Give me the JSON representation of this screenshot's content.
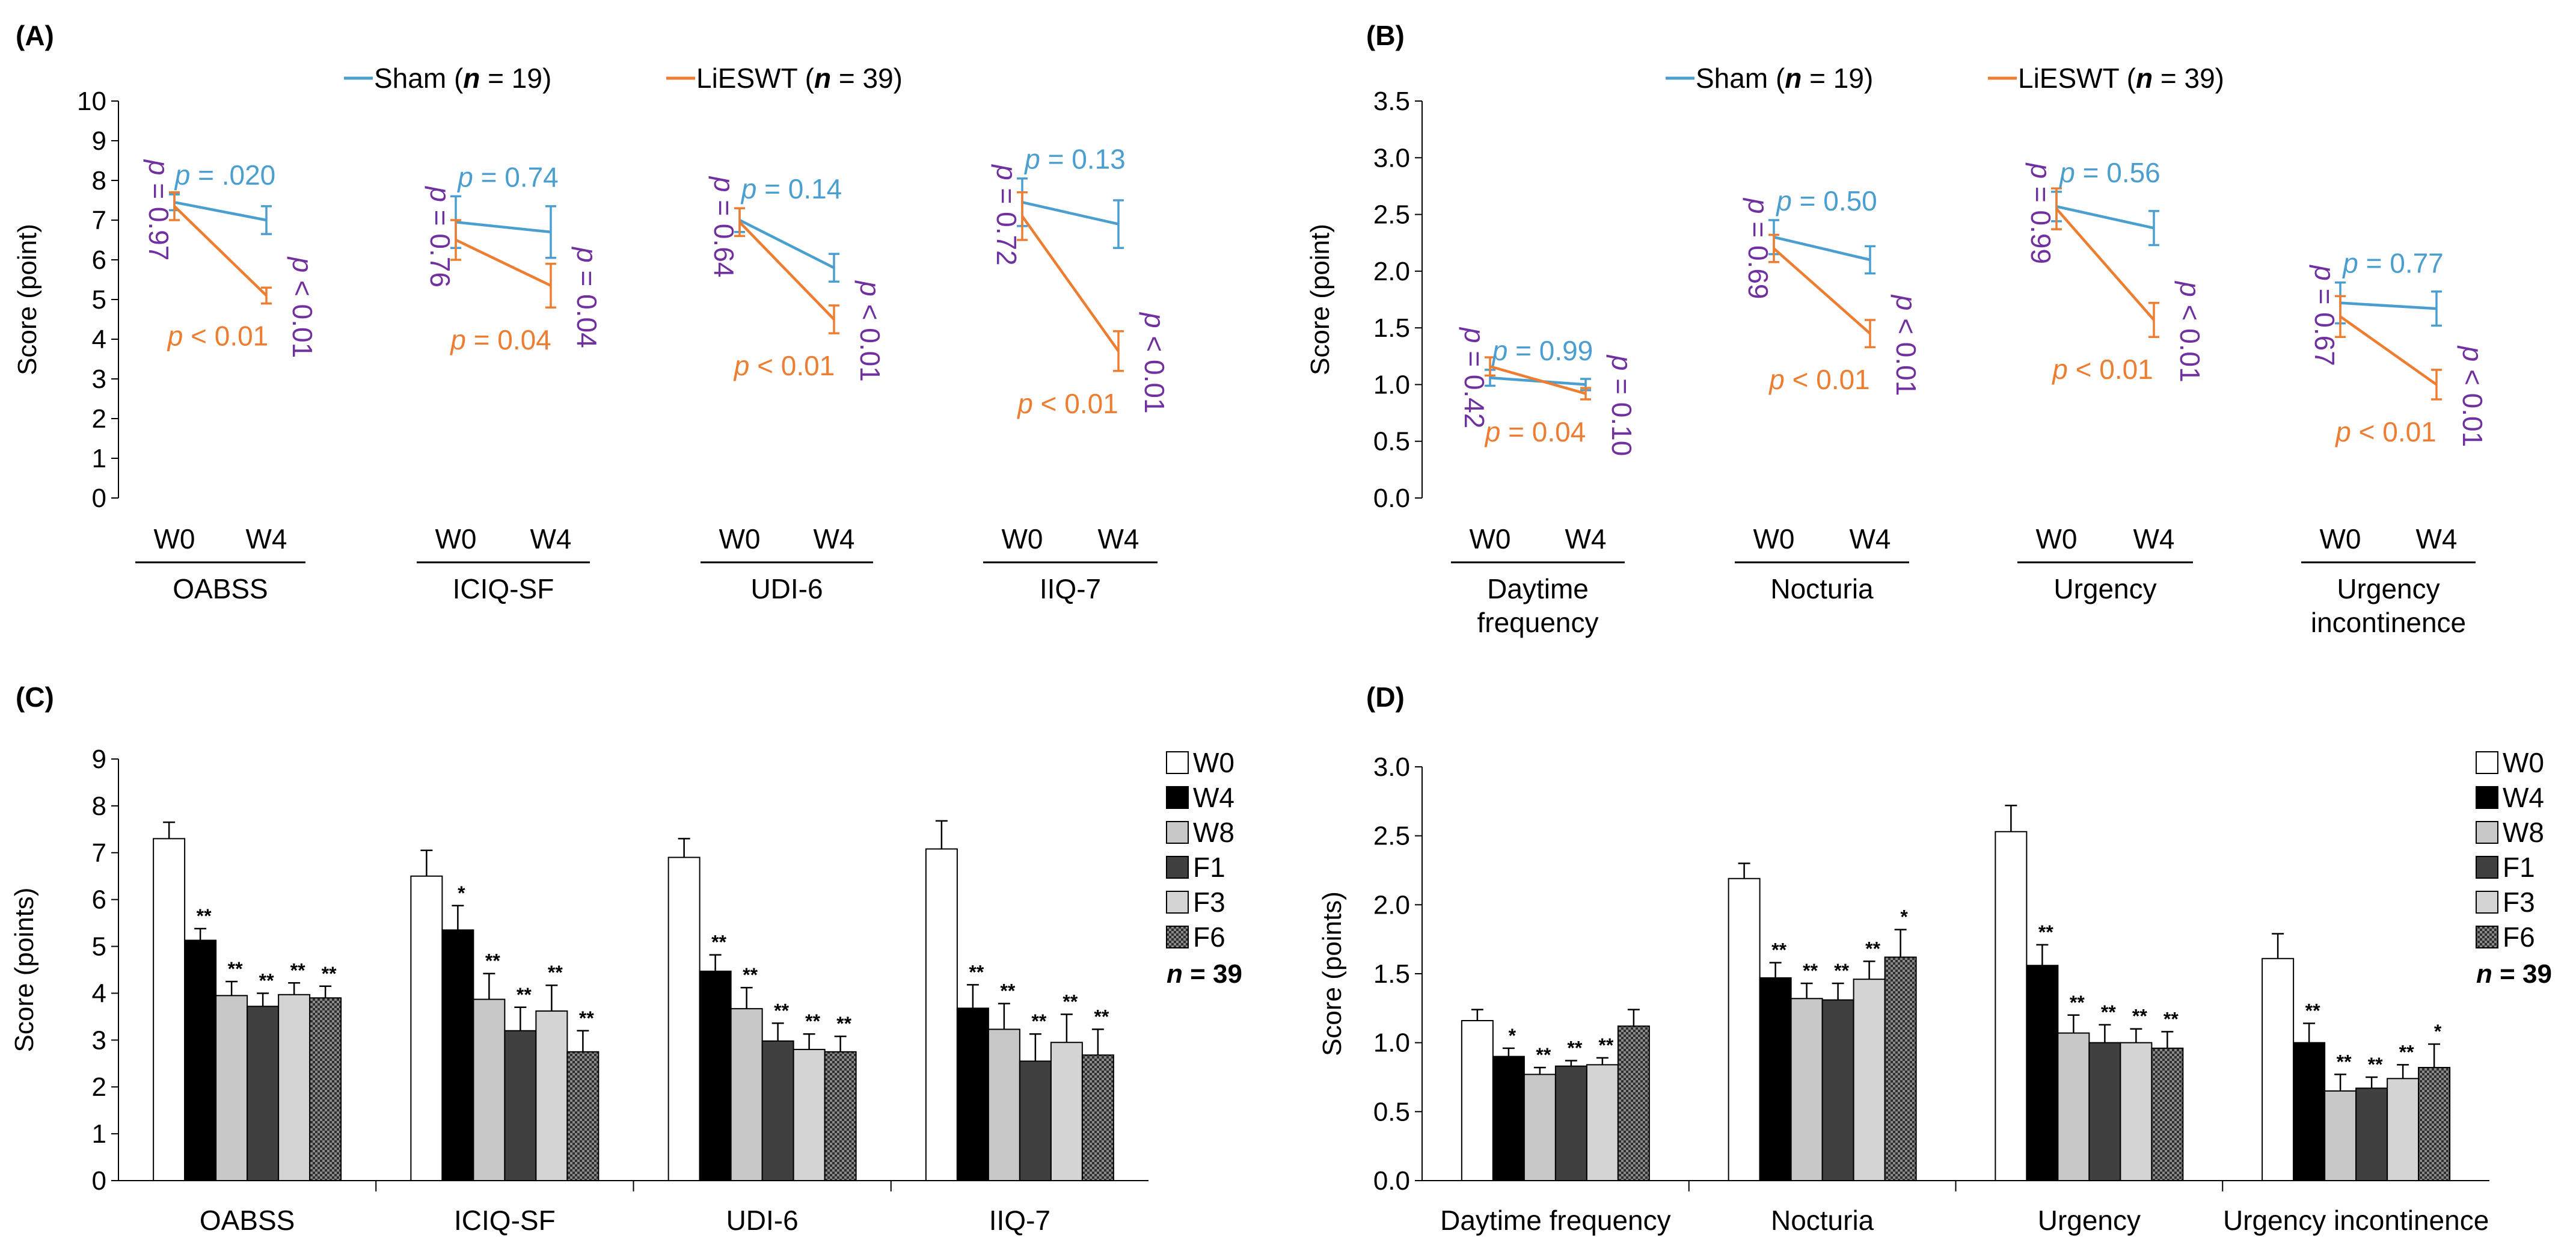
{
  "colors": {
    "sham": "#4A9FD0",
    "liesw": "#ED7D31",
    "pvalue": "#7030A0",
    "axis": "#000000"
  },
  "panels": {
    "A": {
      "label": "(A)"
    },
    "B": {
      "label": "(B)"
    },
    "C": {
      "label": "(C)"
    },
    "D": {
      "label": "(D)"
    }
  },
  "legend_line": {
    "sham": {
      "prefix": "Sham (",
      "n": "n",
      "suffix": " = 19)"
    },
    "liesw": {
      "prefix": "LiESWT (",
      "n": "n",
      "suffix": " = 39)"
    }
  },
  "legend_bar": {
    "items": [
      "W0",
      "W4",
      "W8",
      "F1",
      "F3",
      "F6"
    ],
    "n_label": "n = 39"
  },
  "chart_data": [
    {
      "panel": "A",
      "type": "line",
      "ylabel": "Score (point)",
      "ylim": [
        0,
        10
      ],
      "yticks": [
        "0",
        "1",
        "2",
        "3",
        "4",
        "5",
        "6",
        "7",
        "8",
        "9",
        "10"
      ],
      "timepoints": [
        "W0",
        "W4"
      ],
      "groups": [
        {
          "name": "OABSS",
          "sham": {
            "values": [
              7.45,
              7.0
            ],
            "err": [
              0.2,
              0.35
            ]
          },
          "liesw": {
            "values": [
              7.35,
              5.1
            ],
            "err": [
              0.35,
              0.2
            ]
          },
          "p_sham": "p = .020",
          "p_liesw": "p < 0.01",
          "p_w0": "p = 0.97",
          "p_w4": "p < 0.01"
        },
        {
          "name": "ICIQ-SF",
          "sham": {
            "values": [
              6.95,
              6.7
            ],
            "err": [
              0.65,
              0.65
            ]
          },
          "liesw": {
            "values": [
              6.5,
              5.35
            ],
            "err": [
              0.5,
              0.55
            ]
          },
          "p_sham": "p = 0.74",
          "p_liesw": "p = 0.04",
          "p_w0": "p = 0.76",
          "p_w4": "p = 0.04"
        },
        {
          "name": "UDI-6",
          "sham": {
            "values": [
              7.0,
              5.8
            ],
            "err": [
              0.3,
              0.35
            ]
          },
          "liesw": {
            "values": [
              6.95,
              4.5
            ],
            "err": [
              0.35,
              0.35
            ]
          },
          "p_sham": "p = 0.14",
          "p_liesw": "p < 0.01",
          "p_w0": "p = 0.64",
          "p_w4": "p < 0.01"
        },
        {
          "name": "IIQ-7",
          "sham": {
            "values": [
              7.45,
              6.9
            ],
            "err": [
              0.6,
              0.6
            ]
          },
          "liesw": {
            "values": [
              7.1,
              3.7
            ],
            "err": [
              0.6,
              0.5
            ]
          },
          "p_sham": "p = 0.13",
          "p_liesw": "p < 0.01",
          "p_w0": "p = 0.72",
          "p_w4": "p < 0.01"
        }
      ]
    },
    {
      "panel": "B",
      "type": "line",
      "ylabel": "Score (point)",
      "ylim": [
        0,
        3.5
      ],
      "yticks": [
        "0.0",
        "0.5",
        "1.0",
        "1.5",
        "2.0",
        "2.5",
        "3.0",
        "3.5"
      ],
      "timepoints": [
        "W0",
        "W4"
      ],
      "groups": [
        {
          "name": "Daytime frequency",
          "lines": [
            "Daytime",
            "frequency"
          ],
          "sham": {
            "values": [
              1.06,
              1.0
            ],
            "err": [
              0.07,
              0.05
            ]
          },
          "liesw": {
            "values": [
              1.16,
              0.92
            ],
            "err": [
              0.08,
              0.05
            ]
          },
          "p_sham": "p = 0.99",
          "p_liesw": "p = 0.04",
          "p_w0": "p = 0.42",
          "p_w4": "p = 0.10"
        },
        {
          "name": "Nocturia",
          "lines": [
            "Nocturia"
          ],
          "sham": {
            "values": [
              2.3,
              2.1
            ],
            "err": [
              0.15,
              0.12
            ]
          },
          "liesw": {
            "values": [
              2.2,
              1.45
            ],
            "err": [
              0.12,
              0.12
            ]
          },
          "p_sham": "p = 0.50",
          "p_liesw": "p < 0.01",
          "p_w0": "p = 0.69",
          "p_w4": "p < 0.01"
        },
        {
          "name": "Urgency",
          "lines": [
            "Urgency"
          ],
          "sham": {
            "values": [
              2.57,
              2.38
            ],
            "err": [
              0.13,
              0.15
            ]
          },
          "liesw": {
            "values": [
              2.55,
              1.57
            ],
            "err": [
              0.18,
              0.15
            ]
          },
          "p_sham": "p = 0.56",
          "p_liesw": "p < 0.01",
          "p_w0": "p = 0.99",
          "p_w4": "p < 0.01"
        },
        {
          "name": "Urgency incontinence",
          "lines": [
            "Urgency",
            "incontinence"
          ],
          "sham": {
            "values": [
              1.72,
              1.67
            ],
            "err": [
              0.18,
              0.15
            ]
          },
          "liesw": {
            "values": [
              1.6,
              1.0
            ],
            "err": [
              0.18,
              0.13
            ]
          },
          "p_sham": "p = 0.77",
          "p_liesw": "p < 0.01",
          "p_w0": "p = 0.67",
          "p_w4": "p < 0.01"
        }
      ]
    },
    {
      "panel": "C",
      "type": "bar",
      "ylabel": "Score (points)",
      "ylim": [
        0,
        9
      ],
      "yticks": [
        "0",
        "1",
        "2",
        "3",
        "4",
        "5",
        "6",
        "7",
        "8",
        "9"
      ],
      "series": [
        "W0",
        "W4",
        "W8",
        "F1",
        "F3",
        "F6"
      ],
      "categories": [
        "OABSS",
        "ICIQ-SF",
        "UDI-6",
        "IIQ-7"
      ],
      "values": [
        [
          7.3,
          5.13,
          3.95,
          3.72,
          3.97,
          3.9
        ],
        [
          6.5,
          5.35,
          3.87,
          3.2,
          3.62,
          2.75
        ],
        [
          6.9,
          4.47,
          3.67,
          2.98,
          2.8,
          2.75
        ],
        [
          7.08,
          3.68,
          3.23,
          2.55,
          2.95,
          2.68
        ]
      ],
      "errors": [
        [
          0.35,
          0.25,
          0.3,
          0.28,
          0.25,
          0.25
        ],
        [
          0.55,
          0.52,
          0.55,
          0.5,
          0.55,
          0.45
        ],
        [
          0.4,
          0.35,
          0.45,
          0.38,
          0.33,
          0.33
        ],
        [
          0.6,
          0.5,
          0.55,
          0.58,
          0.6,
          0.55
        ]
      ],
      "stars": [
        [
          "",
          "**",
          "**",
          "**",
          "**",
          "**"
        ],
        [
          "",
          "*",
          "**",
          "**",
          "**",
          "**"
        ],
        [
          "",
          "**",
          "**",
          "**",
          "**",
          "**"
        ],
        [
          "",
          "**",
          "**",
          "**",
          "**",
          "**"
        ]
      ]
    },
    {
      "panel": "D",
      "type": "bar",
      "ylabel": "Score (points)",
      "ylim": [
        0,
        3
      ],
      "yticks": [
        "0.0",
        "0.5",
        "1.0",
        "1.5",
        "2.0",
        "2.5",
        "3.0"
      ],
      "series": [
        "W0",
        "W4",
        "W8",
        "F1",
        "F3",
        "F6"
      ],
      "categories": [
        "Daytime frequency",
        "Nocturia",
        "Urgency",
        "Urgency incontinence"
      ],
      "values": [
        [
          1.16,
          0.9,
          0.77,
          0.83,
          0.84,
          1.12
        ],
        [
          2.19,
          1.47,
          1.32,
          1.31,
          1.46,
          1.62
        ],
        [
          2.53,
          1.56,
          1.07,
          1.0,
          1.0,
          0.96
        ],
        [
          1.61,
          1.0,
          0.65,
          0.67,
          0.74,
          0.82
        ]
      ],
      "errors": [
        [
          0.08,
          0.06,
          0.05,
          0.04,
          0.05,
          0.12
        ],
        [
          0.11,
          0.11,
          0.11,
          0.12,
          0.13,
          0.2
        ],
        [
          0.19,
          0.15,
          0.13,
          0.13,
          0.1,
          0.12
        ],
        [
          0.18,
          0.14,
          0.12,
          0.08,
          0.1,
          0.17
        ]
      ],
      "stars": [
        [
          "",
          "*",
          "**",
          "**",
          "**",
          ""
        ],
        [
          "",
          "**",
          "**",
          "**",
          "**",
          "*"
        ],
        [
          "",
          "**",
          "**",
          "**",
          "**",
          "**"
        ],
        [
          "",
          "**",
          "**",
          "**",
          "**",
          "*"
        ]
      ]
    }
  ]
}
